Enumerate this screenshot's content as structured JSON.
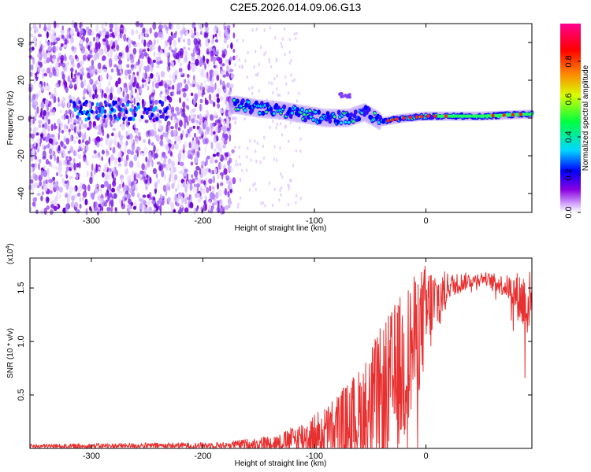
{
  "title": "C2E5.2026.014.09.06.G13",
  "chart_data": [
    {
      "type": "heatmap",
      "name": "spectrogram",
      "xlabel": "Height of straight line (km)",
      "ylabel": "Frequency (Hz)",
      "xlim": [
        -355,
        95
      ],
      "ylim": [
        -50,
        50
      ],
      "xticks": [
        -300,
        -200,
        -100,
        0
      ],
      "xtick_labels": [
        "-300",
        "-200",
        "-100",
        "0"
      ],
      "yticks": [
        -40,
        -20,
        0,
        20,
        40
      ],
      "ytick_labels": [
        "-40",
        "-20",
        "0",
        "20",
        "40"
      ],
      "colorbar": {
        "label": "Normalized spectral amplitude",
        "range": [
          0,
          1
        ],
        "ticks": [
          0.0,
          0.2,
          0.4,
          0.6,
          0.8
        ],
        "tick_labels": [
          "0.0",
          "0.2",
          "0.4",
          "0.6",
          "0.8"
        ],
        "colors": [
          "#ffffff",
          "#8a00e0",
          "#0000ff",
          "#00e0ff",
          "#00ff40",
          "#ffff00",
          "#ff8000",
          "#ff0000",
          "#ff0080"
        ]
      },
      "noise_region": {
        "x_start": -355,
        "x_end": -172,
        "freq_range": [
          -50,
          50
        ]
      },
      "signal_track": [
        {
          "x": -300,
          "freq": 7
        },
        {
          "x": -280,
          "freq": 8
        },
        {
          "x": -260,
          "freq": 4
        },
        {
          "x": -170,
          "freq": 7
        },
        {
          "x": -150,
          "freq": 5
        },
        {
          "x": -130,
          "freq": 4
        },
        {
          "x": -110,
          "freq": 2
        },
        {
          "x": -90,
          "freq": 0
        },
        {
          "x": -70,
          "freq": 0
        },
        {
          "x": -55,
          "freq": 3
        },
        {
          "x": -40,
          "freq": -2
        },
        {
          "x": -20,
          "freq": 0
        },
        {
          "x": 0,
          "freq": 1
        },
        {
          "x": 20,
          "freq": 1
        },
        {
          "x": 50,
          "freq": 1
        },
        {
          "x": 90,
          "freq": 2
        }
      ],
      "colors": {
        "noise": "#8a00e0",
        "track_core": "#00ff40",
        "track_peak": "#ff0000"
      }
    },
    {
      "type": "line",
      "name": "snr",
      "xlabel": "Height of straight line (km)",
      "ylabel": "SNR (10 * v/v)",
      "scale_label": "(x10",
      "scale_exponent": "4",
      "scale_close": ")",
      "xlim": [
        -355,
        95
      ],
      "ylim": [
        0,
        1.78
      ],
      "xticks": [
        -300,
        -200,
        -100,
        0
      ],
      "xtick_labels": [
        "-300",
        "-200",
        "-100",
        "0"
      ],
      "yticks": [
        0.5,
        1.0,
        1.5
      ],
      "ytick_labels": [
        "0.5",
        "1.0",
        "1.5"
      ],
      "color": "#e83030",
      "envelope": [
        {
          "x": -355,
          "base": 0.02,
          "amp": 0.02
        },
        {
          "x": -180,
          "base": 0.03,
          "amp": 0.03
        },
        {
          "x": -130,
          "base": 0.06,
          "amp": 0.08
        },
        {
          "x": -90,
          "base": 0.15,
          "amp": 0.25
        },
        {
          "x": -60,
          "base": 0.3,
          "amp": 0.45
        },
        {
          "x": -40,
          "base": 0.45,
          "amp": 0.7
        },
        {
          "x": -20,
          "base": 0.75,
          "amp": 0.75
        },
        {
          "x": 0,
          "base": 1.25,
          "amp": 0.5
        },
        {
          "x": 20,
          "base": 1.52,
          "amp": 0.12
        },
        {
          "x": 50,
          "base": 1.6,
          "amp": 0.05
        },
        {
          "x": 75,
          "base": 1.5,
          "amp": 0.12
        },
        {
          "x": 90,
          "base": 1.35,
          "amp": 0.35
        },
        {
          "x": 95,
          "base": 1.4,
          "amp": 0.25
        }
      ]
    }
  ]
}
